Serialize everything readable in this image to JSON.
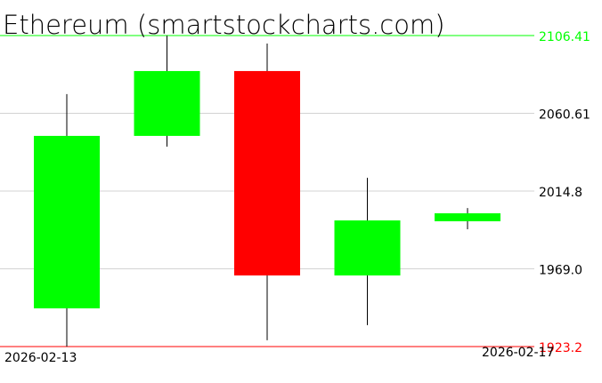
{
  "chart_data": {
    "type": "candlestick",
    "title": "Ethereum (smartstockcharts.com)",
    "x_labels": [
      "2026-02-13",
      "2026-02-17"
    ],
    "ylim": [
      1923.2,
      2106.41
    ],
    "y_ticks": [
      {
        "value": 2106.41,
        "label": "2106.41",
        "color": "#00ff00"
      },
      {
        "value": 2060.61,
        "label": "2060.61",
        "color": "#000000"
      },
      {
        "value": 2014.8,
        "label": "2014.8",
        "color": "#000000"
      },
      {
        "value": 1969.0,
        "label": "1969.0",
        "color": "#000000"
      },
      {
        "value": 1923.2,
        "label": "1923.2",
        "color": "#ff0000"
      }
    ],
    "grid": true,
    "candles": [
      {
        "open": 1945.7,
        "high": 2071.9,
        "low": 1923.2,
        "close": 2047.3
      },
      {
        "open": 2047.3,
        "high": 2106.41,
        "low": 2041.0,
        "close": 2085.5
      },
      {
        "open": 2085.5,
        "high": 2101.7,
        "low": 1926.9,
        "close": 1965.1
      },
      {
        "open": 1965.1,
        "high": 2022.6,
        "low": 1935.8,
        "close": 1997.5
      },
      {
        "open": 1997.0,
        "high": 2004.8,
        "low": 1992.3,
        "close": 2001.7
      }
    ],
    "colors": {
      "up": "#00ff00",
      "down": "#ff0000",
      "wick": "#000000",
      "grid": "#d3d3d3",
      "max_line": "#00ff00",
      "min_line": "#ff0000"
    }
  }
}
